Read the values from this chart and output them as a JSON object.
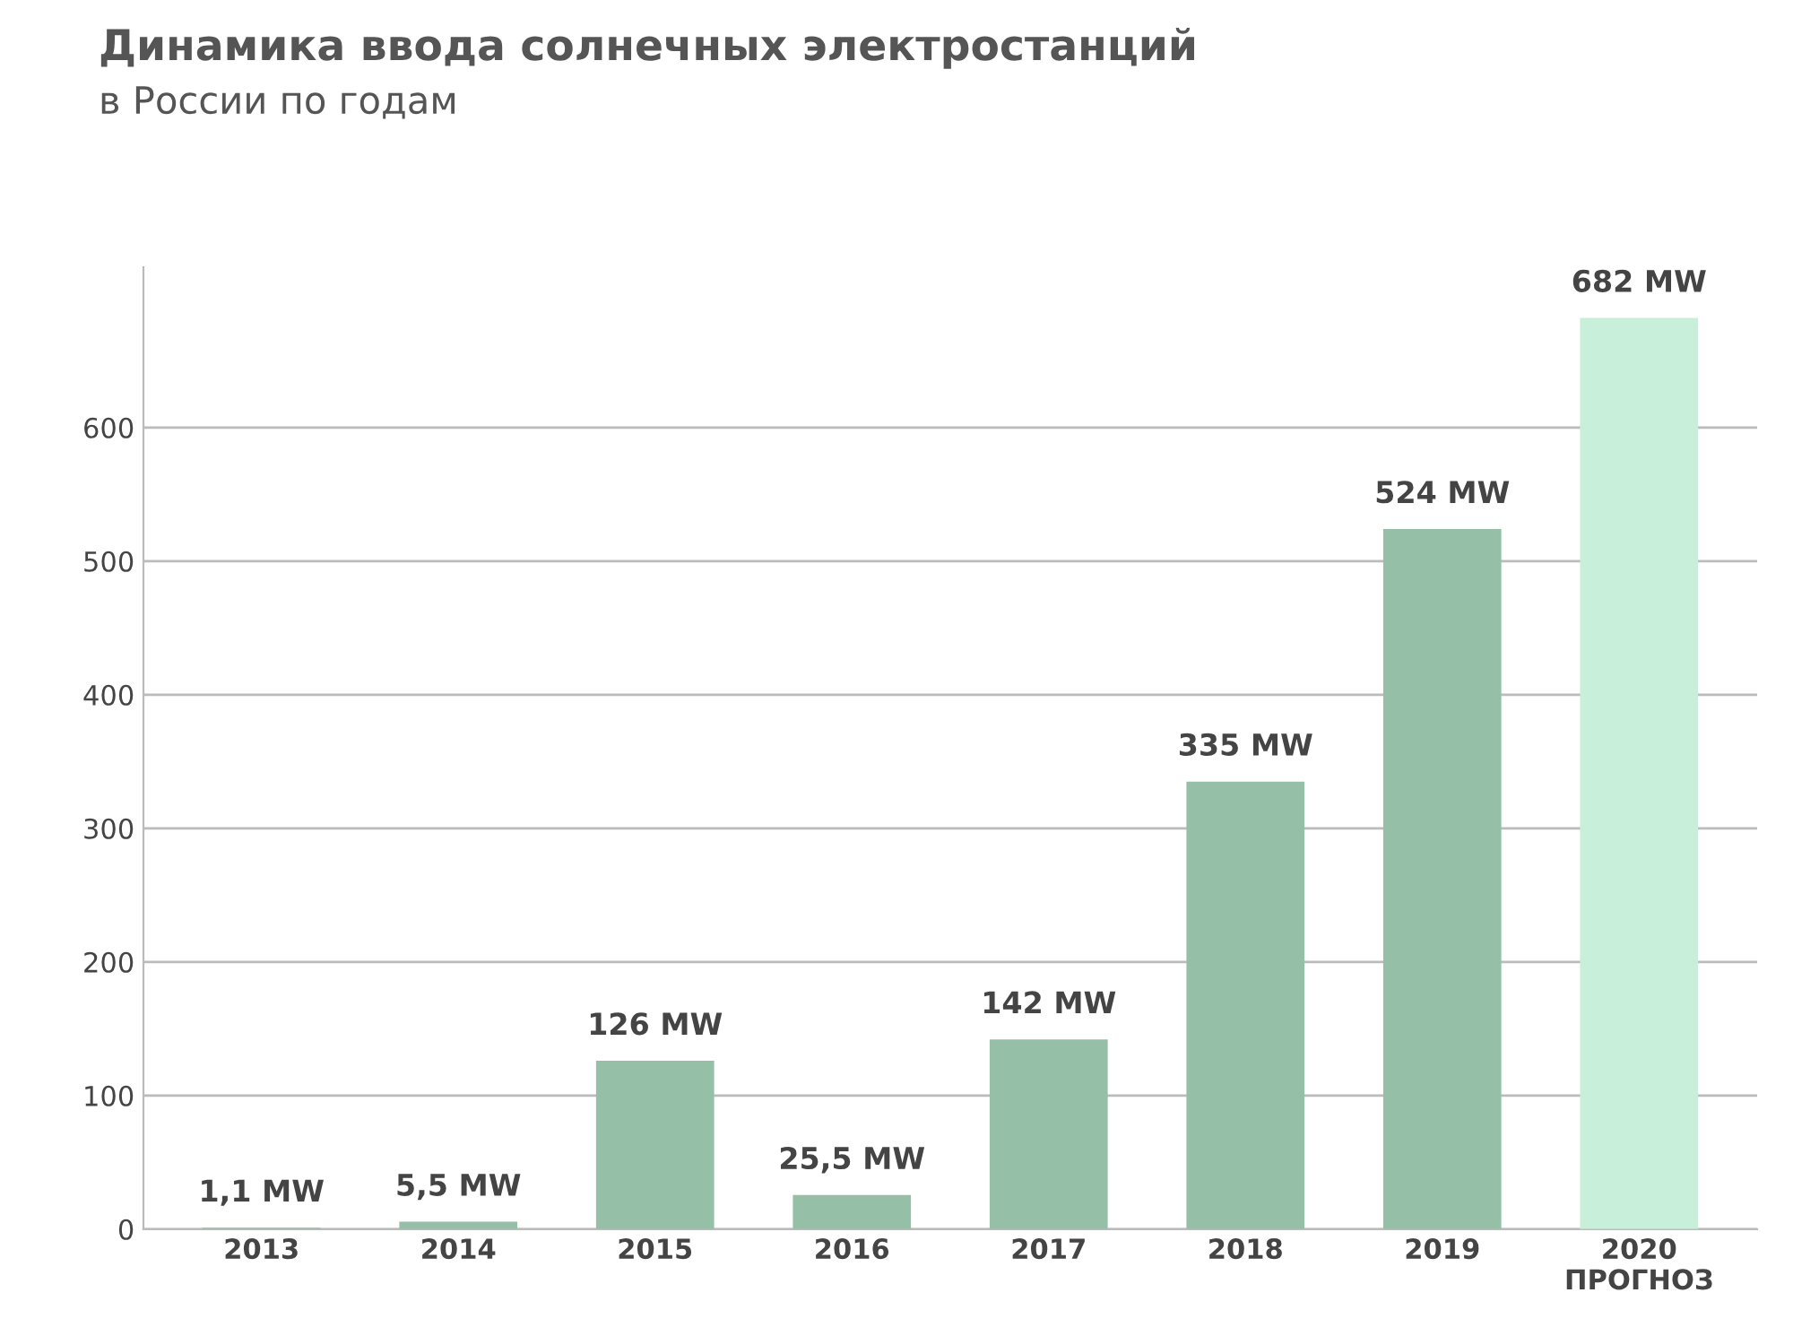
{
  "chart_data": {
    "type": "bar",
    "title": "Динамика ввода солнечных электростанций",
    "subtitle": "в России по годам",
    "categories": [
      "2013",
      "2014",
      "2015",
      "2016",
      "2017",
      "2018",
      "2019",
      "2020\nПРОГНОЗ"
    ],
    "values": [
      1.1,
      5.5,
      126,
      25.5,
      142,
      335,
      524,
      682
    ],
    "colors": [
      "#96bfa7",
      "#96bfa7",
      "#96bfa7",
      "#96bfa7",
      "#96bfa7",
      "#96bfa7",
      "#96bfa7",
      "#c8efd9"
    ],
    "value_labels": [
      "1,1 MW",
      "5,5 MW",
      "126 MW",
      "25,5 MW",
      "142 MW",
      "335 MW",
      "524 MW",
      "682 MW"
    ],
    "ylim": [
      0,
      720
    ],
    "yticks": [
      0,
      100,
      200,
      300,
      400,
      500,
      600
    ],
    "grid": "y"
  }
}
